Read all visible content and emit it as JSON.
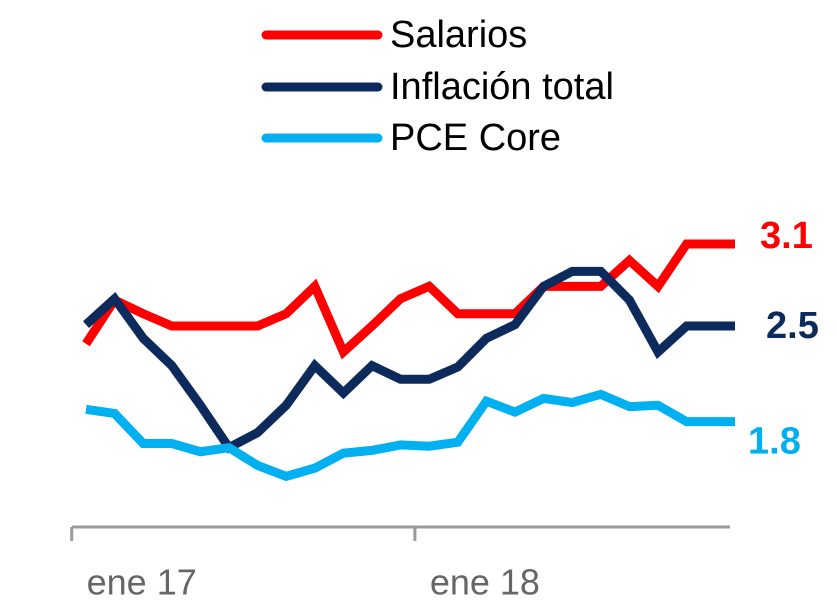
{
  "chart_data": {
    "type": "line",
    "categories": [
      "ene 17",
      null,
      null,
      null,
      null,
      null,
      null,
      null,
      null,
      null,
      null,
      null,
      "ene 18",
      null,
      null,
      null,
      null,
      null,
      null,
      null,
      null,
      null,
      null,
      null
    ],
    "series": [
      {
        "name": "Salarios",
        "color": "#ff0000",
        "values": [
          2.37,
          2.69,
          2.59,
          2.5,
          2.5,
          2.5,
          2.5,
          2.59,
          2.79,
          2.31,
          2.5,
          2.7,
          2.79,
          2.59,
          2.59,
          2.59,
          2.79,
          2.79,
          2.79,
          2.98,
          2.79,
          3.1,
          3.1,
          3.1
        ]
      },
      {
        "name": "Inflación total",
        "color": "#0d2a5c",
        "values": [
          2.51,
          2.7,
          2.41,
          2.21,
          1.92,
          1.61,
          1.72,
          1.92,
          2.21,
          2.01,
          2.21,
          2.11,
          2.11,
          2.2,
          2.41,
          2.51,
          2.79,
          2.9,
          2.9,
          2.69,
          2.31,
          2.5,
          2.5,
          2.5
        ]
      },
      {
        "name": "PCE Core",
        "color": "#00b0f0",
        "values": [
          1.89,
          1.86,
          1.64,
          1.64,
          1.58,
          1.61,
          1.48,
          1.4,
          1.46,
          1.57,
          1.59,
          1.63,
          1.62,
          1.65,
          1.95,
          1.87,
          1.97,
          1.94,
          2.0,
          1.91,
          1.92,
          1.8,
          1.8,
          1.8
        ]
      }
    ],
    "ylim": [
      1.0,
      3.4
    ]
  }
}
